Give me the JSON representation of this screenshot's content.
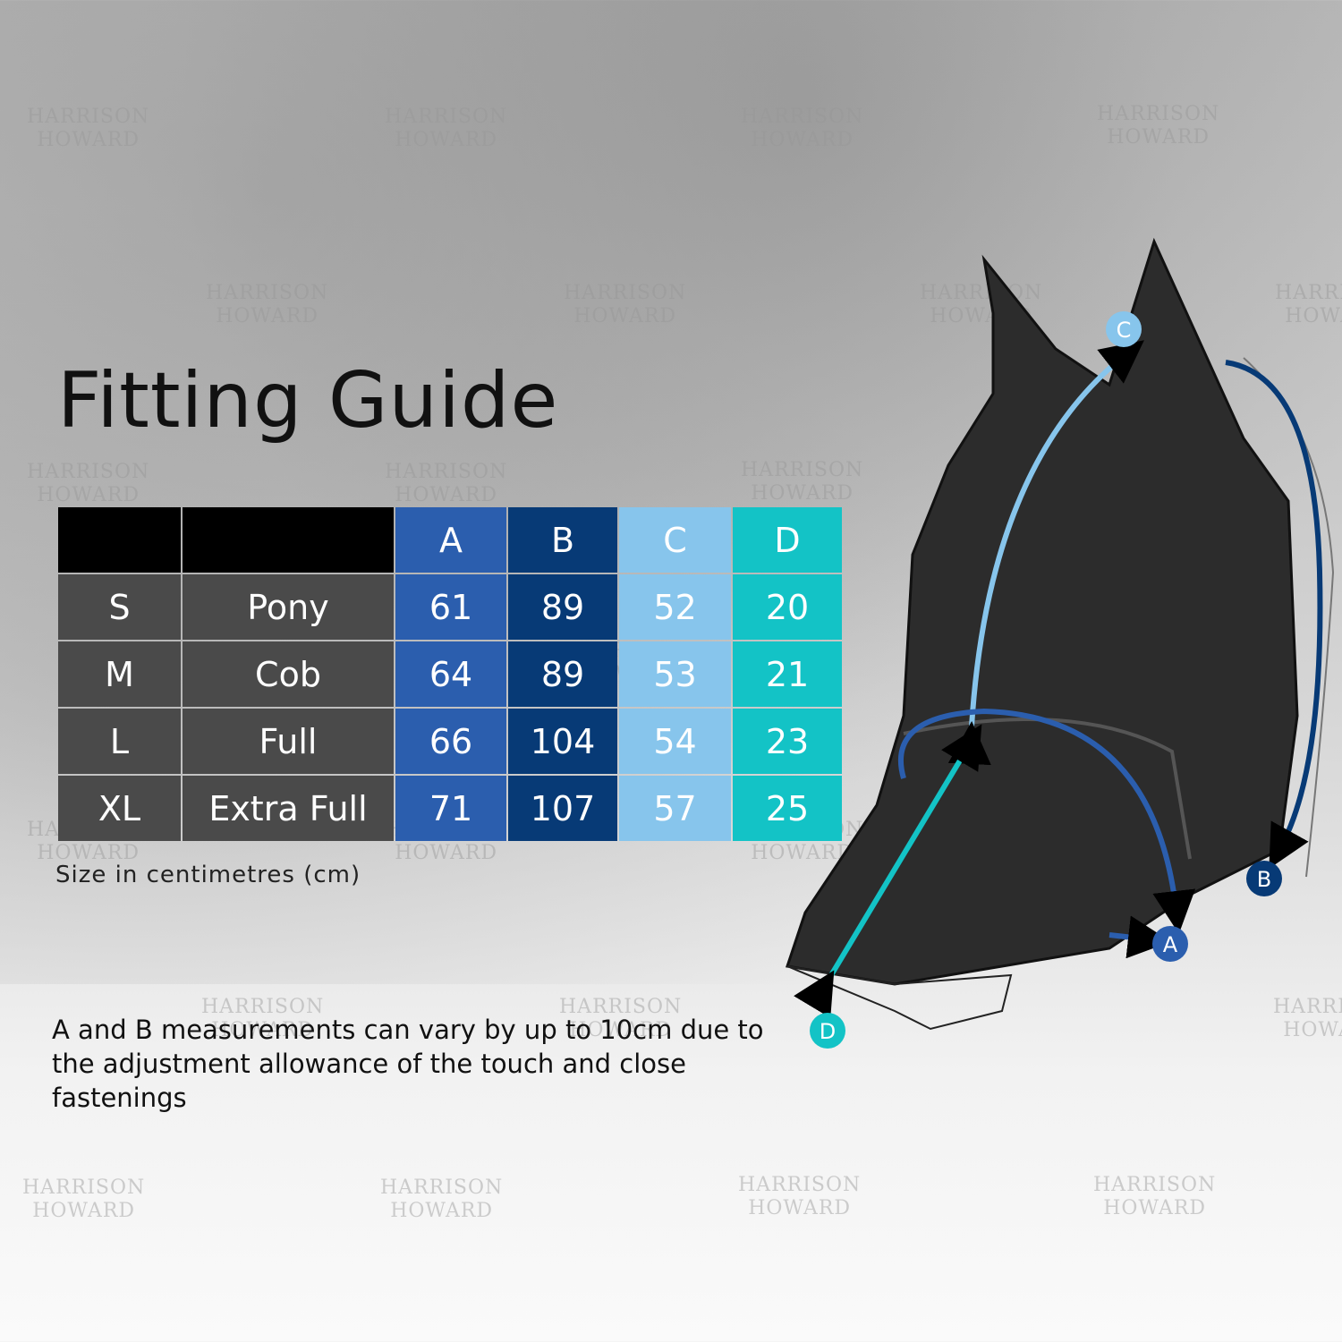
{
  "title": "Fitting Guide",
  "table": {
    "headers": [
      "",
      "",
      "A",
      "B",
      "C",
      "D"
    ],
    "rows": [
      {
        "size": "S",
        "type": "Pony",
        "A": "61",
        "B": "89",
        "C": "52",
        "D": "20"
      },
      {
        "size": "M",
        "type": "Cob",
        "A": "64",
        "B": "89",
        "C": "53",
        "D": "21"
      },
      {
        "size": "L",
        "type": "Full",
        "A": "66",
        "B": "104",
        "C": "54",
        "D": "23"
      },
      {
        "size": "XL",
        "type": "Extra Full",
        "A": "71",
        "B": "107",
        "C": "57",
        "D": "25"
      }
    ]
  },
  "unit_note": "Size in centimetres (cm)",
  "footnote": "A and B measurements can vary by up to 10cm due to the adjustment allowance of the touch and close fastenings",
  "diagram_labels": {
    "A": "A",
    "B": "B",
    "C": "C",
    "D": "D"
  },
  "watermark": "HARRISON HOWARD",
  "colors": {
    "A": "#2b5eae",
    "B": "#073a76",
    "C": "#87c5ec",
    "D": "#13c3c6"
  }
}
